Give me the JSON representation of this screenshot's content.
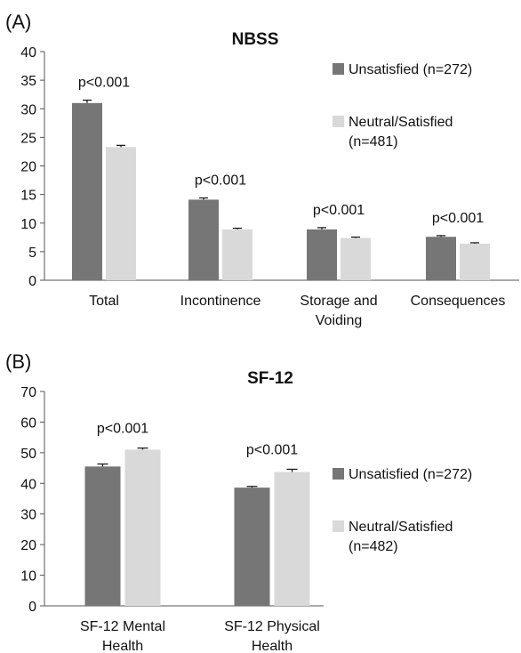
{
  "chart_data": [
    {
      "type": "bar",
      "panel_label": "(A)",
      "title": "NBSS",
      "categories": [
        [
          "Total"
        ],
        [
          "Incontinence"
        ],
        [
          "Storage and",
          "Voiding"
        ],
        [
          "Consequences"
        ]
      ],
      "series": [
        {
          "name": "Unsatisfied (n=272)",
          "values": [
            31.0,
            14.1,
            8.9,
            7.6
          ],
          "errors": [
            0.5,
            0.3,
            0.3,
            0.2
          ]
        },
        {
          "name": "Neutral/Satisfied (n=481)",
          "values": [
            23.3,
            8.9,
            7.4,
            6.4
          ],
          "errors": [
            0.3,
            0.2,
            0.15,
            0.15
          ]
        }
      ],
      "annotations": [
        "p<0.001",
        "p<0.001",
        "p<0.001",
        "p<0.001"
      ],
      "ylim": [
        0,
        40
      ],
      "yticks": [
        0,
        5,
        10,
        15,
        20,
        25,
        30,
        35,
        40
      ],
      "legend": [
        [
          "Unsatisfied (n=272)"
        ],
        [
          "Neutral/Satisfied",
          "(n=481)"
        ]
      ],
      "legend_position": "right",
      "grid": false,
      "colors": {
        "unsatisfied": "#767676",
        "satisfied": "#d9d9d9"
      }
    },
    {
      "type": "bar",
      "panel_label": "(B)",
      "title": "SF-12",
      "categories": [
        [
          "SF-12 Mental",
          "Health"
        ],
        [
          "SF-12 Physical",
          "Health"
        ]
      ],
      "series": [
        {
          "name": "Unsatisfied (n=272)",
          "values": [
            45.5,
            38.6
          ],
          "errors": [
            0.8,
            0.4
          ]
        },
        {
          "name": "Neutral/Satisfied (n=482)",
          "values": [
            51.0,
            43.7
          ],
          "errors": [
            0.5,
            0.9
          ]
        }
      ],
      "annotations": [
        "p<0.001",
        "p<0.001"
      ],
      "ylim": [
        0,
        70
      ],
      "yticks": [
        0,
        10,
        20,
        30,
        40,
        50,
        60,
        70
      ],
      "legend": [
        [
          "Unsatisfied (n=272)"
        ],
        [
          "Neutral/Satisfied",
          "(n=482)"
        ]
      ],
      "legend_position": "right",
      "grid": false,
      "colors": {
        "unsatisfied": "#767676",
        "satisfied": "#d9d9d9"
      }
    }
  ]
}
